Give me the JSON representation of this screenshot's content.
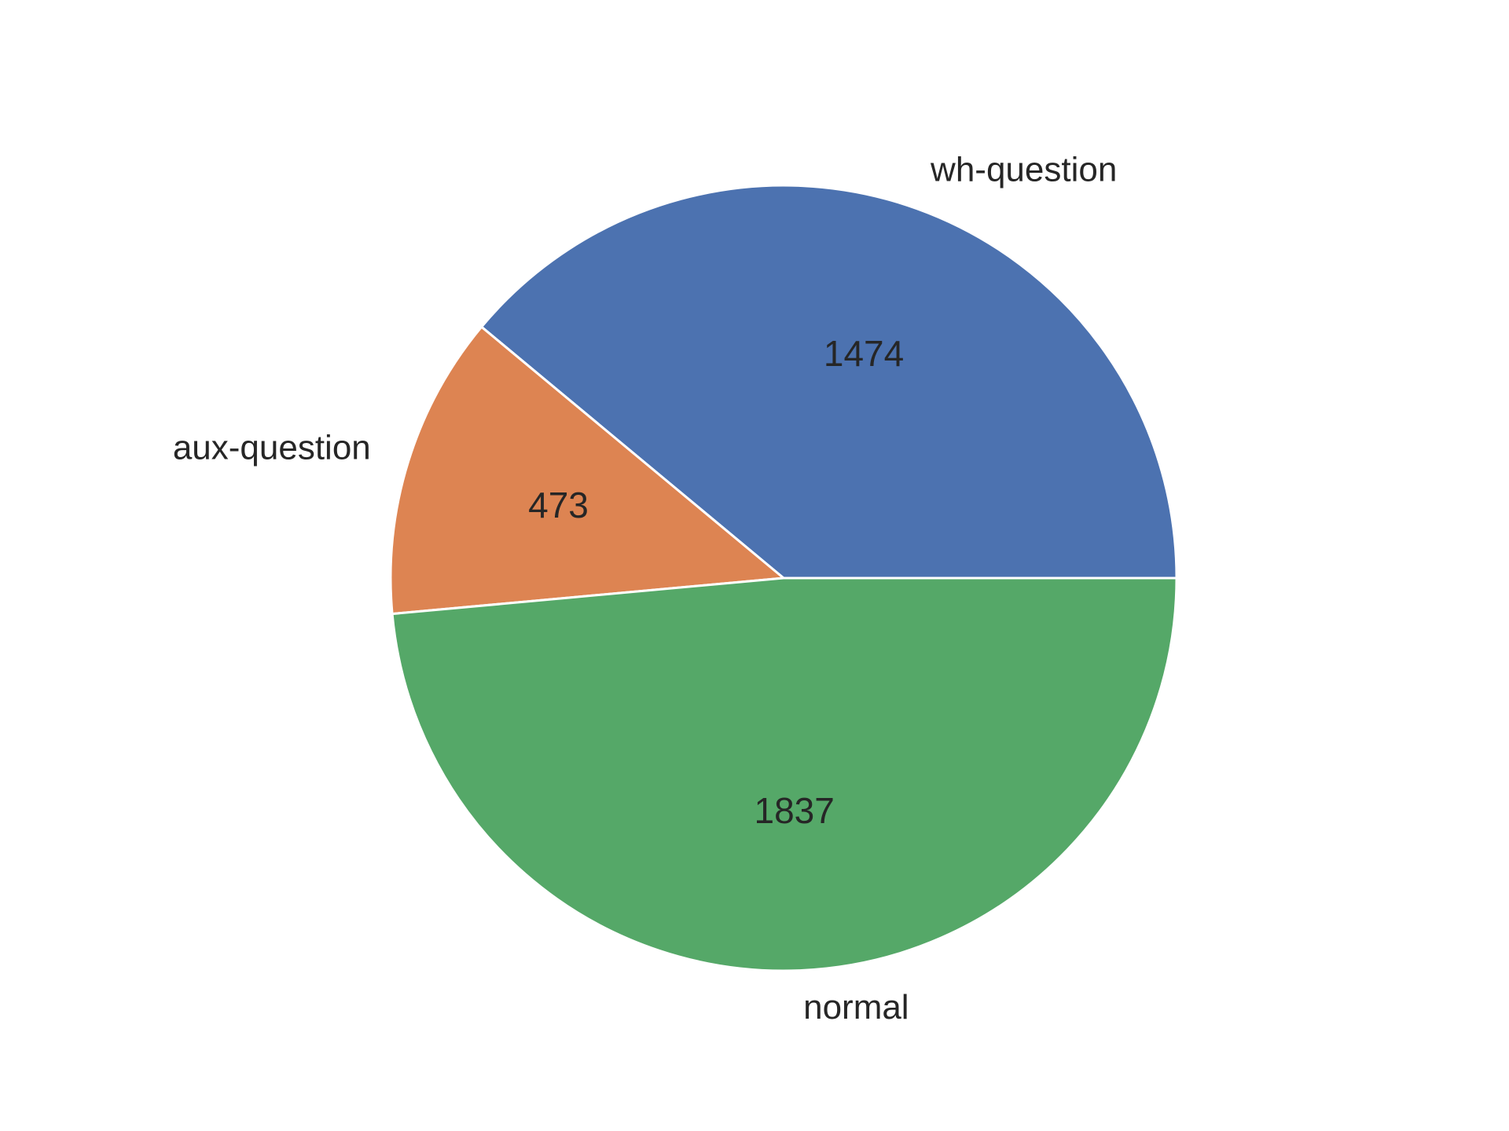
{
  "chart_data": {
    "type": "pie",
    "categories": [
      "wh-question",
      "aux-question",
      "normal"
    ],
    "values": [
      1474,
      473,
      1837
    ],
    "value_labels": [
      "1474",
      "473",
      "1837"
    ],
    "colors": [
      "#4c72b0",
      "#dd8452",
      "#55a868"
    ],
    "start_angle_deg": 0,
    "direction": "counterclockwise",
    "edge_color": "#ffffff",
    "title": "",
    "legend": false
  }
}
